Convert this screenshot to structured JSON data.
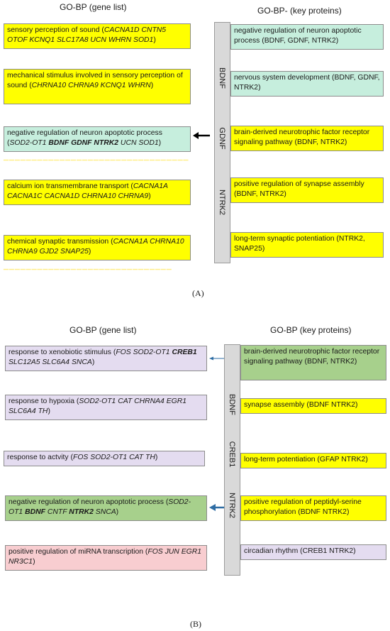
{
  "panel_a": {
    "header_left": "GO-BP (gene list)",
    "header_right": "GO-BP- (key proteins)",
    "bar_labels": [
      "BDNF",
      "GDNF",
      "NTRK2"
    ],
    "left_boxes": [
      {
        "text": "sensory perception of sound (",
        "genes": "CACNA1D CNTN5 OTOF KCNQ1 SLC17A8 UCN WHRN SOD1",
        "close": ")",
        "color": "yellow"
      },
      {
        "text": "mechanical stimulus involved in sensory perception of sound (",
        "genes": "CHRNA10 CHRNA9 KCNQ1 WHRN",
        "close": ")",
        "color": "yellow"
      },
      {
        "text": "negative regulation of neuron apoptotic process (",
        "genes_pre": "SOD2-OT1 ",
        "genes_key": "BDNF GDNF NTRK2",
        "genes_post": " UCN SOD1",
        "close": ")",
        "color": "teal"
      },
      {
        "text": "calcium ion transmembrane transport (",
        "genes": "CACNA1A CACNA1C CACNA1D CHRNA10 CHRNA9",
        "close": ")",
        "color": "yellow"
      },
      {
        "text": "chemical synaptic transmission (",
        "genes": "CACNA1A CHRNA10 CHRNA9 GJD2 SNAP25",
        "close": ")",
        "color": "yellow"
      }
    ],
    "right_boxes": [
      {
        "text": "negative regulation of neuron apoptotic process (BDNF, GDNF, NTRK2)",
        "color": "teal"
      },
      {
        "text": "nervous system development (BDNF, GDNF, NTRK2)",
        "color": "teal"
      },
      {
        "text": "brain-derived neurotrophic factor receptor signaling pathway (BDNF, NTRK2)",
        "color": "yellow"
      },
      {
        "text": "positive regulation of synapse assembly (BDNF, NTRK2)",
        "color": "yellow"
      },
      {
        "text": "long-term synaptic potentiation (NTRK2, SNAP25)",
        "color": "yellow"
      }
    ],
    "panel_label": "(A)"
  },
  "panel_b": {
    "header_left": "GO-BP (gene list)",
    "header_right": "GO-BP (key proteins)",
    "bar_labels": [
      "BDNF",
      "CREB1",
      "NTRK2"
    ],
    "left_boxes": [
      {
        "text": "response to xenobiotic stimulus (",
        "genes_pre": "FOS SOD2-OT1 ",
        "genes_key": "CREB1",
        "genes_post": " SLC12A5 SLC6A4 SNCA",
        "close": ")",
        "color": "lav"
      },
      {
        "text": "response to hypoxia (",
        "genes": "SOD2-OT1 CAT CHRNA4 EGR1 SLC6A4 TH",
        "close": ")",
        "color": "lav"
      },
      {
        "text": "response to actvity  (",
        "genes": "FOS SOD2-OT1 CAT TH",
        "close": ")",
        "color": "lav"
      },
      {
        "text": "negative regulation of neuron apoptotic process (",
        "genes_pre": "SOD2-OT1 ",
        "genes_key": "BDNF",
        "genes_mid": " CNTF ",
        "genes_key2": "NTRK2",
        "genes_post": " SNCA",
        "close": ")",
        "color": "green"
      },
      {
        "text": "positive regulation of miRNA transcription (",
        "genes": "FOS JUN EGR1 NR3C1",
        "close": ")",
        "color": "pink"
      }
    ],
    "right_boxes": [
      {
        "text": "brain-derived neurotrophic factor receptor signaling pathway (BDNF, NTRK2)",
        "color": "green"
      },
      {
        "text": "synapse assembly (BDNF NTRK2)",
        "color": "yellow"
      },
      {
        "text": "long-term potentiation (GFAP NTRK2)",
        "color": "yellow"
      },
      {
        "text": "positive regulation of peptidyl-serine phosphorylation (BDNF NTRK2)",
        "color": "yellow"
      },
      {
        "text": "circadian rhythm (CREB1 NTRK2)",
        "color": "lav"
      }
    ],
    "panel_label": "(B)"
  },
  "colors": {
    "yellow": "#ffff00",
    "teal": "#c6eedd",
    "lavender": "#e4dcf0",
    "green": "#a7d08c",
    "pink": "#f8cdd0",
    "bar": "#d9d9d9",
    "arrow_a": "#000000",
    "arrow_b": "#2e6da4"
  }
}
